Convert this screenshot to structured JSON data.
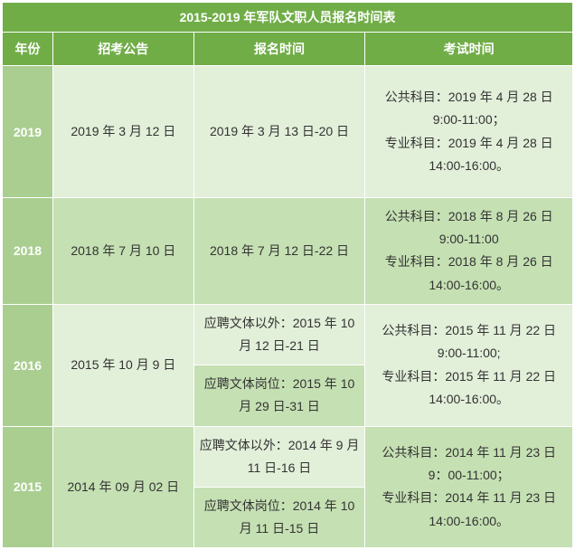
{
  "title": "2015-2019 年军队文职人员报名时间表",
  "headers": {
    "year": "年份",
    "announcement": "招考公告",
    "registration": "报名时间",
    "exam": "考试时间"
  },
  "rows": {
    "r2019": {
      "year": "2019",
      "announcement": "2019 年 3 月 12 日",
      "registration": "2019 年 3 月 13 日-20 日",
      "exam": "公共科目：2019 年 4 月 28 日 9:00-11:00；\n专业科目：2019 年 4 月 28 日 14:00-16:00。"
    },
    "r2018": {
      "year": "2018",
      "announcement": "2018 年 7 月 10 日",
      "registration": "2018 年 7 月 12 日-22 日",
      "exam": "公共科目：2018 年 8 月 26 日 9:00-11:00\n专业科目：2018 年 8 月 26 日 14:00-16:00。"
    },
    "r2016": {
      "year": "2016",
      "announcement": "2015 年 10 月 9 日",
      "registration1": "应聘文体以外：2015 年 10 月 12 日-21 日",
      "registration2": "应聘文体岗位：2015 年 10 月 29 日-31 日",
      "exam": "公共科目：2015 年 11 月 22 日 9:00-11:00;\n专业科目：2015 年 11 月 22 日 14:00-16:00。"
    },
    "r2015": {
      "year": "2015",
      "announcement": "2014 年 09 月 02 日",
      "registration1": "应聘文体以外：2014 年 9 月 11 日-16 日",
      "registration2": "应聘文体岗位：2014 年 10 月 11 日-15 日",
      "exam": "公共科目：2014 年 11 月 23 日 9：00-11:00；\n专业科目：2014 年 11 月 23 日 14:00-16:00。"
    }
  },
  "colors": {
    "header_bg": "#70ad47",
    "year_bg": "#a9ce90",
    "row_light": "#e2efd9",
    "row_dark": "#c5e0b3",
    "header_text": "#ffffff",
    "cell_text": "#333333"
  }
}
